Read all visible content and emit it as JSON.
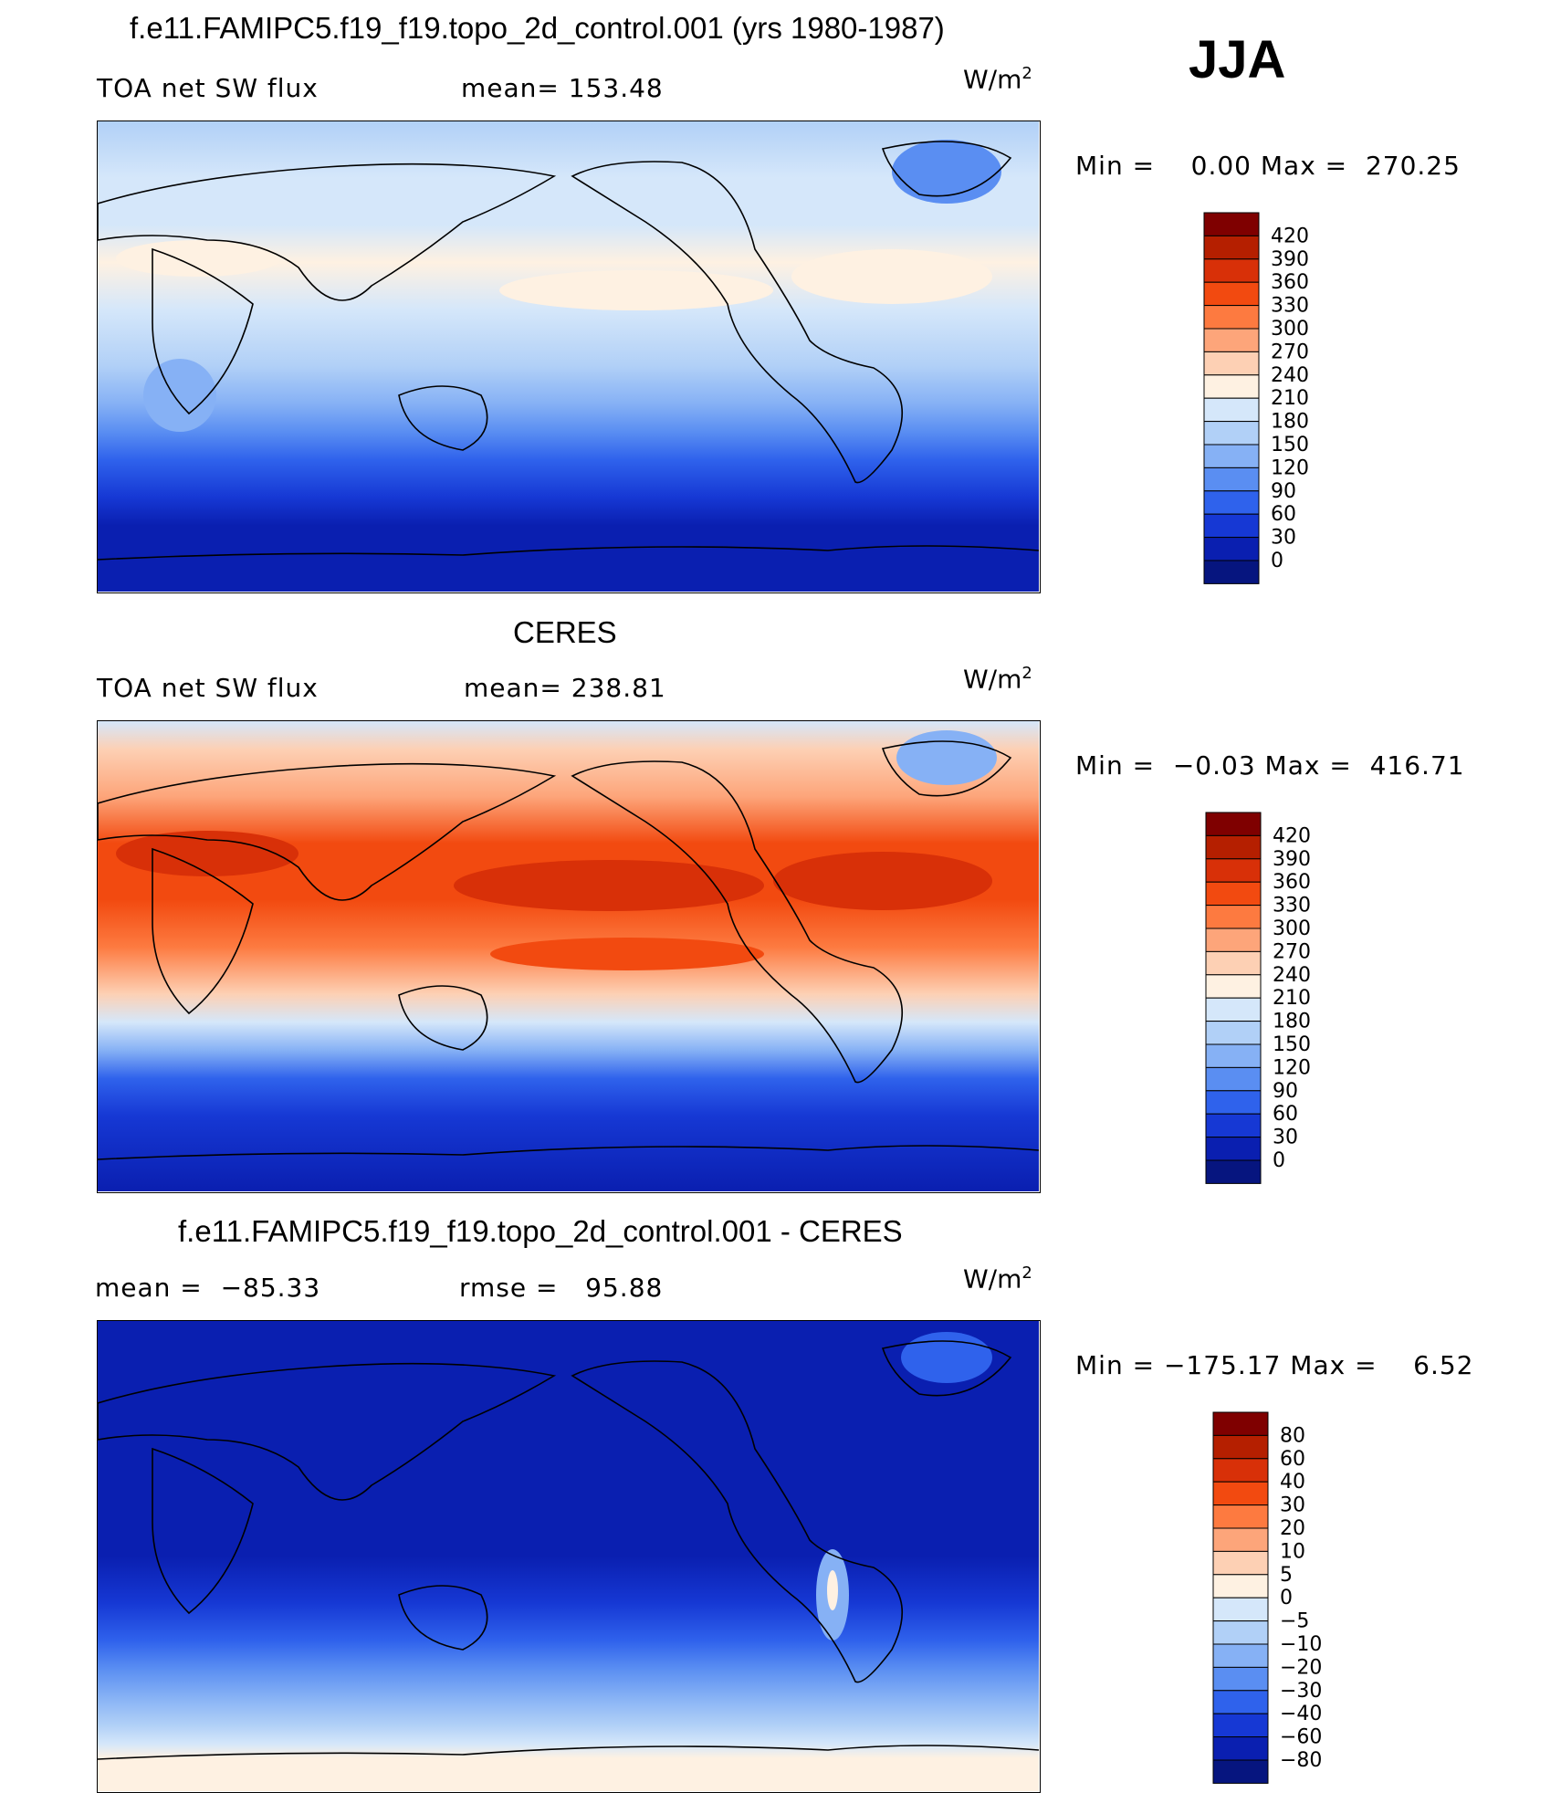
{
  "season": "JJA",
  "chart_data": [
    {
      "type": "heatmap",
      "title": "f.e11.FAMIPC5.f19_f19.topo_2d_control.001 (yrs 1980-1987)",
      "left_label": "TOA net SW flux",
      "center_label": "mean= 153.48",
      "units": "W/m",
      "units_sup": "2",
      "minmax": "Min =    0.00 Max =  270.25",
      "levels": [
        "420",
        "390",
        "360",
        "330",
        "300",
        "270",
        "240",
        "210",
        "180",
        "150",
        "120",
        "90",
        "60",
        "30",
        "0"
      ],
      "colors": [
        "#7f0000",
        "#b51f00",
        "#d83008",
        "#f24a10",
        "#fd7a40",
        "#fda57a",
        "#fdd0b4",
        "#fef1e2",
        "#d5e7fa",
        "#b1d0f7",
        "#86b1f5",
        "#5a8ef2",
        "#2f62ec",
        "#1638d4",
        "#0a1fb0",
        "#06157f"
      ]
    },
    {
      "type": "heatmap",
      "title": "CERES",
      "left_label": "TOA net SW flux",
      "center_label": "mean= 238.81",
      "units": "W/m",
      "units_sup": "2",
      "minmax": "Min =  −0.03 Max =  416.71",
      "levels": [
        "420",
        "390",
        "360",
        "330",
        "300",
        "270",
        "240",
        "210",
        "180",
        "150",
        "120",
        "90",
        "60",
        "30",
        "0"
      ],
      "colors": [
        "#7f0000",
        "#b51f00",
        "#d83008",
        "#f24a10",
        "#fd7a40",
        "#fda57a",
        "#fdd0b4",
        "#fef1e2",
        "#d5e7fa",
        "#b1d0f7",
        "#86b1f5",
        "#5a8ef2",
        "#2f62ec",
        "#1638d4",
        "#0a1fb0",
        "#06157f"
      ]
    },
    {
      "type": "heatmap",
      "title": "f.e11.FAMIPC5.f19_f19.topo_2d_control.001 - CERES",
      "left_label": "mean =  −85.33",
      "center_label": "rmse =   95.88",
      "units": "W/m",
      "units_sup": "2",
      "minmax": "Min = −175.17 Max =    6.52",
      "levels": [
        "80",
        "60",
        "40",
        "30",
        "20",
        "10",
        "5",
        "0",
        "−5",
        "−10",
        "−20",
        "−30",
        "−40",
        "−60",
        "−80"
      ],
      "colors": [
        "#7f0000",
        "#b51f00",
        "#d83008",
        "#f24a10",
        "#fd7a40",
        "#fda57a",
        "#fdd0b4",
        "#fef1e2",
        "#d5e7fa",
        "#b1d0f7",
        "#86b1f5",
        "#5a8ef2",
        "#2f62ec",
        "#1638d4",
        "#0a1fb0",
        "#06157f"
      ]
    }
  ]
}
